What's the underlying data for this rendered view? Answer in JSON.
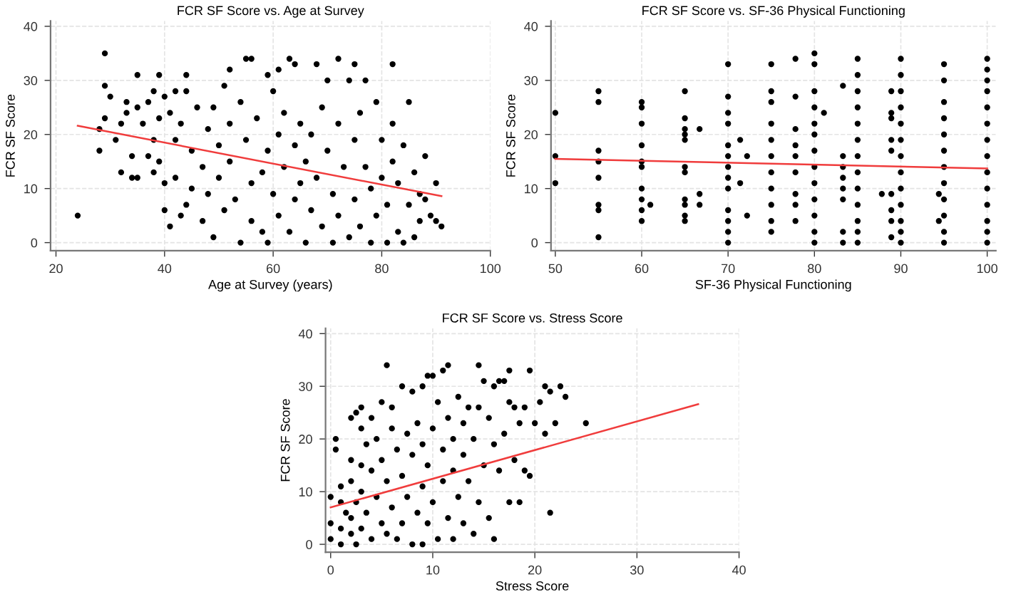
{
  "chart_data": [
    {
      "type": "scatter",
      "title": "FCR SF Score vs. Age at Survey",
      "xlabel": "Age at Survey (years)",
      "ylabel": "FCR SF Score",
      "xlim": [
        19,
        100
      ],
      "ylim": [
        -1.5,
        41
      ],
      "xticks": [
        20,
        40,
        60,
        80,
        100
      ],
      "yticks": [
        0,
        10,
        20,
        30,
        40
      ],
      "grid": true,
      "series": [
        {
          "marker": "circle",
          "color": "#000000",
          "x": [
            24,
            28,
            28,
            29,
            29,
            29,
            30,
            31,
            32,
            32,
            33,
            33,
            34,
            34,
            35,
            35,
            35,
            36,
            37,
            37,
            38,
            38,
            38,
            39,
            39,
            39,
            40,
            40,
            40,
            41,
            41,
            42,
            42,
            42,
            43,
            43,
            44,
            44,
            44,
            45,
            45,
            46,
            47,
            47,
            48,
            48,
            49,
            49,
            50,
            50,
            51,
            51,
            52,
            52,
            52,
            53,
            54,
            54,
            55,
            55,
            56,
            56,
            56,
            57,
            58,
            58,
            59,
            59,
            59,
            60,
            60,
            61,
            61,
            61,
            62,
            62,
            63,
            63,
            64,
            64,
            64,
            65,
            65,
            66,
            66,
            67,
            67,
            68,
            68,
            69,
            69,
            70,
            70,
            71,
            71,
            72,
            72,
            72,
            73,
            74,
            74,
            75,
            75,
            75,
            76,
            76,
            77,
            77,
            78,
            78,
            79,
            79,
            80,
            80,
            81,
            81,
            82,
            82,
            82,
            83,
            83,
            84,
            84,
            85,
            85,
            86,
            86,
            87,
            87,
            88,
            88,
            89,
            90,
            90,
            91
          ],
          "values": [
            5,
            21,
            17,
            35,
            29,
            23,
            27,
            19,
            13,
            22,
            26,
            24,
            16,
            12,
            31,
            25,
            12,
            22,
            16,
            26,
            28,
            19,
            13,
            31,
            23,
            15,
            27,
            6,
            11,
            3,
            24,
            28,
            19,
            12,
            22,
            5,
            31,
            28,
            7,
            17,
            10,
            25,
            4,
            14,
            21,
            9,
            1,
            25,
            18,
            12,
            29,
            6,
            32,
            22,
            15,
            8,
            0,
            26,
            34,
            19,
            34,
            11,
            4,
            23,
            13,
            2,
            31,
            17,
            0,
            28,
            9,
            32,
            20,
            5,
            14,
            24,
            34,
            2,
            33,
            18,
            8,
            11,
            22,
            0,
            15,
            20,
            6,
            33,
            12,
            25,
            3,
            30,
            17,
            9,
            0,
            34,
            22,
            5,
            14,
            30,
            1,
            33,
            19,
            8,
            24,
            3,
            30,
            14,
            0,
            10,
            26,
            5,
            19,
            12,
            0,
            7,
            33,
            22,
            15,
            2,
            11,
            0,
            18,
            26,
            7,
            13,
            1,
            9,
            4,
            16,
            8,
            5,
            11,
            4,
            3
          ]
        },
        {
          "type": "line",
          "color": "#f03c3c",
          "x": [
            24,
            91
          ],
          "values": [
            21.6,
            8.6
          ]
        }
      ]
    },
    {
      "type": "scatter",
      "title": "FCR SF Score vs. SF-36 Physical Functioning",
      "xlabel": "SF-36 Physical Functioning",
      "ylabel": "FCR SF Score",
      "xlim": [
        49.5,
        101
      ],
      "ylim": [
        -1.5,
        41
      ],
      "xticks": [
        50,
        60,
        70,
        80,
        90,
        100
      ],
      "yticks": [
        0,
        10,
        20,
        30,
        40
      ],
      "grid": true,
      "series": [
        {
          "marker": "circle",
          "color": "#000000",
          "x": [
            50,
            50,
            50,
            55,
            55,
            55,
            55,
            55,
            55,
            55,
            55,
            60,
            60,
            60,
            60,
            60,
            60,
            60,
            60,
            60,
            60,
            61,
            65,
            65,
            65,
            65,
            65,
            65,
            65,
            65,
            65,
            65,
            65,
            66.7,
            66.7,
            66.7,
            70,
            70,
            70,
            70,
            70,
            70,
            70,
            70,
            70,
            70,
            70,
            70,
            70,
            71.4,
            71.4,
            72.2,
            72.2,
            75,
            75,
            75,
            75,
            75,
            75,
            75,
            75,
            75,
            75,
            75,
            77.8,
            77.8,
            77.8,
            77.8,
            77.8,
            77.8,
            77.8,
            77.8,
            77.8,
            80,
            80,
            80,
            80,
            80,
            80,
            80,
            80,
            80,
            80,
            80,
            80,
            80,
            81.1,
            83.3,
            83.3,
            83.3,
            83.3,
            83.3,
            83.3,
            83.3,
            83.3,
            85,
            85,
            85,
            85,
            85,
            85,
            85,
            85,
            85,
            85,
            85,
            85,
            85,
            87.8,
            88.9,
            88.9,
            88.9,
            88.9,
            88.9,
            88.9,
            88.9,
            88.9,
            88.9,
            90,
            90,
            90,
            90,
            90,
            90,
            90,
            90,
            90,
            90,
            90,
            90,
            90,
            94.4,
            94.4,
            95,
            95,
            95,
            95,
            95,
            95,
            95,
            95,
            95,
            95,
            95,
            95,
            100,
            100,
            100,
            100,
            100,
            100,
            100,
            100,
            100,
            100,
            100,
            100,
            100,
            100
          ],
          "values": [
            24,
            16,
            11,
            28,
            26,
            17,
            15,
            12,
            7,
            6,
            1,
            26,
            25,
            22,
            18,
            15,
            14,
            10,
            8,
            6,
            4,
            7,
            28,
            23,
            21,
            20,
            19,
            14,
            13,
            8,
            7,
            5,
            4,
            21,
            9,
            7,
            33,
            27,
            24,
            22,
            18,
            16,
            14,
            12,
            10,
            6,
            4,
            2,
            0,
            19,
            11,
            16,
            5,
            33,
            28,
            26,
            22,
            19,
            16,
            13,
            10,
            7,
            4,
            2,
            34,
            27,
            21,
            18,
            16,
            13,
            9,
            7,
            4,
            35,
            33,
            28,
            25,
            22,
            20,
            17,
            14,
            11,
            8,
            5,
            2,
            0,
            24,
            29,
            16,
            14,
            12,
            10,
            8,
            2,
            0,
            34,
            31,
            28,
            25,
            22,
            19,
            16,
            13,
            10,
            7,
            4,
            2,
            0,
            9,
            28,
            24,
            23,
            19,
            17,
            9,
            6,
            4,
            1,
            34,
            31,
            28,
            25,
            22,
            19,
            16,
            13,
            10,
            7,
            4,
            2,
            0,
            9,
            4,
            33,
            30,
            26,
            23,
            20,
            17,
            14,
            11,
            8,
            5,
            2,
            0,
            34,
            32,
            30,
            28,
            25,
            22,
            19,
            16,
            13,
            10,
            7,
            4,
            2,
            0
          ]
        },
        {
          "type": "line",
          "color": "#f03c3c",
          "x": [
            50,
            100
          ],
          "values": [
            15.5,
            13.7
          ]
        }
      ]
    },
    {
      "type": "scatter",
      "title": "FCR SF Score vs. Stress Score",
      "xlabel": "Stress Score",
      "ylabel": "FCR SF Score",
      "xlim": [
        -0.5,
        40
      ],
      "ylim": [
        -1.5,
        41
      ],
      "xticks": [
        0,
        10,
        20,
        30,
        40
      ],
      "yticks": [
        0,
        10,
        20,
        30,
        40
      ],
      "grid": true,
      "series": [
        {
          "marker": "circle",
          "color": "#000000",
          "x": [
            0,
            0,
            0,
            0.5,
            0.5,
            1,
            1,
            1,
            1,
            1.5,
            2,
            2,
            2,
            2,
            2,
            2.5,
            2.5,
            2.5,
            3,
            3,
            3,
            3,
            3,
            3.5,
            3.5,
            4,
            4,
            4,
            4.5,
            4.5,
            5,
            5,
            5,
            5.5,
            5.5,
            5.5,
            6,
            6,
            6,
            6.5,
            6.5,
            7,
            7,
            7,
            7.5,
            7.5,
            8,
            8,
            8,
            8.5,
            8.5,
            9,
            9,
            9,
            9,
            9.5,
            9.5,
            9.5,
            10,
            10,
            10,
            10.5,
            10.5,
            11,
            11,
            11,
            11.5,
            11.5,
            11.5,
            12,
            12,
            12,
            12.5,
            12.5,
            13,
            13,
            13,
            13.5,
            13.5,
            14,
            14,
            14.5,
            14.5,
            14.5,
            15,
            15,
            15.5,
            15.5,
            16,
            16,
            16,
            16.5,
            16.5,
            17,
            17,
            17.5,
            17.5,
            17.5,
            18,
            18,
            18.5,
            18.5,
            19,
            19,
            19.5,
            19.5,
            20,
            20.5,
            21,
            21,
            21.5,
            21.5,
            22,
            22.5,
            23,
            25
          ],
          "values": [
            9,
            4,
            1,
            18,
            20,
            11,
            8,
            3,
            0,
            6,
            24,
            16,
            12,
            5,
            2,
            25,
            8,
            0,
            26,
            22,
            15,
            10,
            3,
            19,
            6,
            24,
            14,
            1,
            20,
            9,
            27,
            16,
            4,
            34,
            12,
            2,
            22,
            7,
            26,
            18,
            1,
            30,
            13,
            4,
            21,
            9,
            29,
            17,
            0,
            23,
            6,
            30,
            19,
            11,
            0,
            32,
            15,
            4,
            32,
            22,
            8,
            27,
            1,
            33,
            18,
            12,
            34,
            24,
            5,
            20,
            14,
            1,
            28,
            9,
            23,
            17,
            4,
            26,
            12,
            2,
            20,
            34,
            26,
            8,
            31,
            15,
            24,
            5,
            30,
            19,
            1,
            31,
            14,
            31,
            21,
            33,
            27,
            8,
            26,
            16,
            8,
            23,
            26,
            14,
            33,
            13,
            23,
            27,
            30,
            21,
            6,
            29,
            23,
            30,
            28,
            23
          ]
        },
        {
          "type": "line",
          "color": "#f03c3c",
          "x": [
            0,
            36
          ],
          "values": [
            7.0,
            26.6
          ]
        }
      ]
    }
  ]
}
